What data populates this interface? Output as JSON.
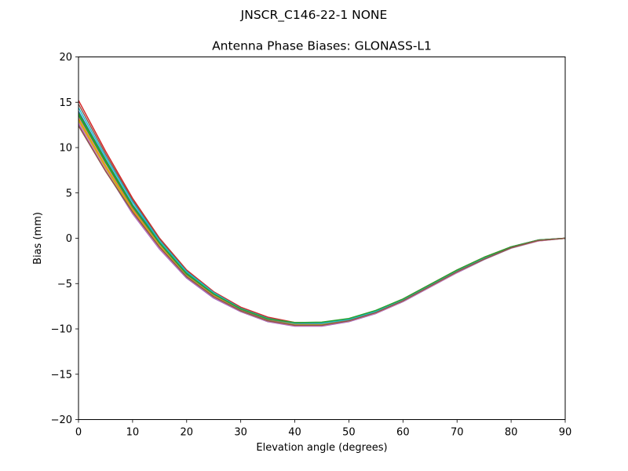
{
  "chart_data": {
    "type": "line",
    "suptitle": "JNSCR_C146-22-1 NONE",
    "title": "Antenna Phase Biases: GLONASS-L1",
    "xlabel": "Elevation angle (degrees)",
    "ylabel": "Bias (mm)",
    "xlim": [
      0,
      90
    ],
    "ylim": [
      -20,
      20
    ],
    "xticks": [
      0,
      10,
      20,
      30,
      40,
      50,
      60,
      70,
      80,
      90
    ],
    "yticks": [
      -20,
      -15,
      -10,
      -5,
      0,
      5,
      10,
      15,
      20
    ],
    "xtick_labels": [
      "0",
      "10",
      "20",
      "30",
      "40",
      "50",
      "60",
      "70",
      "80",
      "90"
    ],
    "ytick_labels": [
      "−20",
      "−15",
      "−10",
      "−5",
      "0",
      "5",
      "10",
      "15",
      "20"
    ],
    "grid": false,
    "legend": "none",
    "x": [
      0,
      5,
      10,
      15,
      20,
      25,
      30,
      35,
      40,
      45,
      50,
      55,
      60,
      65,
      70,
      75,
      80,
      85,
      90
    ],
    "series": [
      {
        "color": "#1f77b4",
        "values": [
          14.0,
          8.7,
          3.7,
          -0.4,
          -3.8,
          -6.1,
          -7.8,
          -8.9,
          -9.4,
          -9.4,
          -9.0,
          -8.1,
          -6.8,
          -5.2,
          -3.6,
          -2.2,
          -1.0,
          -0.25,
          0
        ]
      },
      {
        "color": "#ff7f0e",
        "values": [
          13.2,
          8.0,
          3.2,
          -0.8,
          -4.1,
          -6.3,
          -7.9,
          -9.0,
          -9.5,
          -9.5,
          -9.1,
          -8.2,
          -6.9,
          -5.3,
          -3.7,
          -2.3,
          -1.05,
          -0.25,
          0
        ]
      },
      {
        "color": "#2ca02c",
        "values": [
          13.8,
          8.6,
          3.6,
          -0.5,
          -3.9,
          -6.1,
          -7.8,
          -8.9,
          -9.4,
          -9.4,
          -9.0,
          -8.1,
          -6.8,
          -5.2,
          -3.6,
          -2.2,
          -1.0,
          -0.25,
          0
        ]
      },
      {
        "color": "#d62728",
        "values": [
          15.2,
          9.6,
          4.4,
          0.0,
          -3.5,
          -5.9,
          -7.6,
          -8.7,
          -9.3,
          -9.3,
          -8.9,
          -8.0,
          -6.7,
          -5.1,
          -3.5,
          -2.1,
          -0.95,
          -0.2,
          0
        ]
      },
      {
        "color": "#9467bd",
        "values": [
          12.6,
          7.5,
          2.7,
          -1.2,
          -4.4,
          -6.6,
          -8.1,
          -9.2,
          -9.7,
          -9.7,
          -9.2,
          -8.3,
          -7.0,
          -5.4,
          -3.8,
          -2.35,
          -1.1,
          -0.3,
          0
        ]
      },
      {
        "color": "#8c564b",
        "values": [
          14.8,
          9.3,
          4.2,
          -0.1,
          -3.6,
          -6.0,
          -7.7,
          -8.8,
          -9.35,
          -9.35,
          -8.95,
          -8.05,
          -6.75,
          -5.15,
          -3.55,
          -2.15,
          -0.95,
          -0.2,
          0
        ]
      },
      {
        "color": "#e377c2",
        "values": [
          12.8,
          7.6,
          2.8,
          -1.1,
          -4.3,
          -6.5,
          -8.05,
          -9.15,
          -9.65,
          -9.65,
          -9.15,
          -8.25,
          -6.95,
          -5.35,
          -3.75,
          -2.3,
          -1.05,
          -0.3,
          0
        ]
      },
      {
        "color": "#7f7f7f",
        "values": [
          13.5,
          8.3,
          3.4,
          -0.6,
          -4.0,
          -6.2,
          -7.85,
          -8.95,
          -9.45,
          -9.45,
          -9.05,
          -8.15,
          -6.85,
          -5.25,
          -3.65,
          -2.25,
          -1.0,
          -0.25,
          0
        ]
      },
      {
        "color": "#bcbd22",
        "values": [
          13.0,
          7.8,
          3.0,
          -0.9,
          -4.2,
          -6.4,
          -8.0,
          -9.1,
          -9.55,
          -9.55,
          -9.1,
          -8.2,
          -6.9,
          -5.3,
          -3.7,
          -2.3,
          -1.05,
          -0.25,
          0
        ]
      },
      {
        "color": "#17becf",
        "values": [
          14.4,
          9.0,
          4.0,
          -0.3,
          -3.7,
          -6.0,
          -7.75,
          -8.85,
          -9.35,
          -9.35,
          -8.95,
          -8.05,
          -6.75,
          -5.15,
          -3.55,
          -2.15,
          -0.95,
          -0.2,
          0
        ]
      },
      {
        "color": "#2ca02c",
        "values": [
          13.6,
          8.4,
          3.5,
          -0.55,
          -3.95,
          -6.15,
          -7.8,
          -8.9,
          -9.3,
          -9.25,
          -8.85,
          -7.95,
          -6.7,
          -5.1,
          -3.5,
          -2.1,
          -0.95,
          -0.2,
          0
        ]
      },
      {
        "color": "#8c564b",
        "values": [
          12.4,
          7.4,
          2.9,
          -1.0,
          -4.25,
          -6.45,
          -8.0,
          -9.1,
          -9.6,
          -9.6,
          -9.1,
          -8.2,
          -6.9,
          -5.3,
          -3.7,
          -2.3,
          -1.05,
          -0.25,
          0
        ]
      }
    ]
  }
}
